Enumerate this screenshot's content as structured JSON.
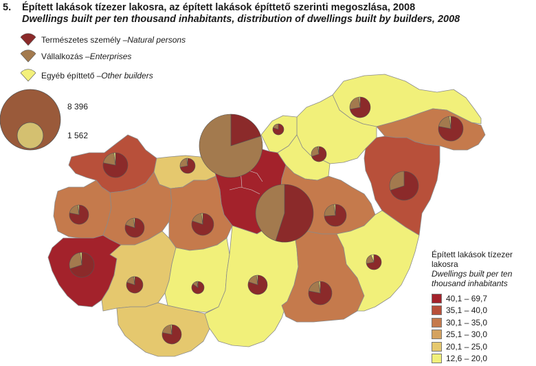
{
  "title": {
    "number": "5.",
    "hu": "Épített lakások tízezer lakosra, az épített lakások építtető szerinti megoszlása, 2008",
    "en": "Dwellings built per ten thousand inhabitants, distribution of dwellings built by builders, 2008"
  },
  "pie_legend": [
    {
      "hu": "Természetes személy – ",
      "en": "Natural persons",
      "color": "#8b2a2a"
    },
    {
      "hu": "Vállalkozás – ",
      "en": "Enterprises",
      "color": "#a37a4e"
    },
    {
      "hu": "Egyéb építtető – ",
      "en": "Other builders",
      "color": "#f3f07a"
    }
  ],
  "size_legend": {
    "large": "8 396",
    "small": "1 562"
  },
  "choropleth_legend": {
    "title_hu": "Épített lakások tízezer lakosra",
    "title_en": "Dwellings built per ten thousand inhabitants",
    "classes": [
      {
        "label": "40,1 – 69,7",
        "color": "#a3222b"
      },
      {
        "label": "35,1 – 40,0",
        "color": "#b8503a"
      },
      {
        "label": "30,1 – 35,0",
        "color": "#c57a4c"
      },
      {
        "label": "25,1 – 30,0",
        "color": "#d4a260"
      },
      {
        "label": "20,1 – 25,0",
        "color": "#e5c86e"
      },
      {
        "label": "12,6 – 20,0",
        "color": "#f1f07a"
      }
    ]
  },
  "colors": {
    "natural": "#8b2a2a",
    "enterprise": "#a37a4e",
    "other": "#f3f07a"
  }
}
